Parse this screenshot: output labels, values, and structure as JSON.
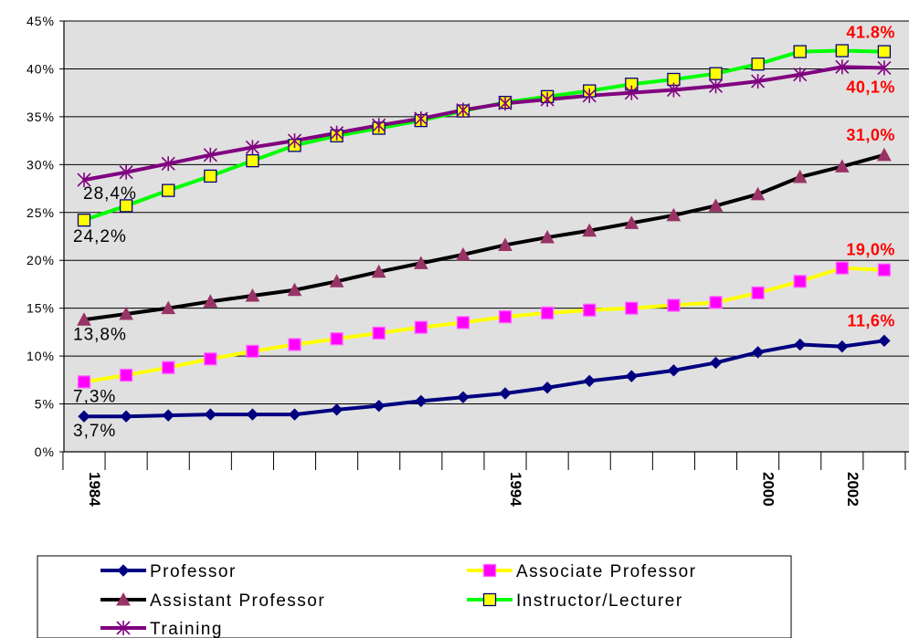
{
  "chart_data": {
    "type": "line",
    "x": [
      1984,
      1985,
      1986,
      1987,
      1988,
      1989,
      1990,
      1991,
      1992,
      1993,
      1994,
      1995,
      1996,
      1997,
      1998,
      1999,
      2000,
      2001,
      2002,
      2003
    ],
    "x_tick_labels": [
      "1984",
      "1994",
      "2000",
      "2002"
    ],
    "x_tick_label_positions": [
      1984,
      1994,
      2000,
      2002
    ],
    "y_tick_labels": [
      "0%",
      "5%",
      "10%",
      "15%",
      "20%",
      "25%",
      "30%",
      "35%",
      "40%",
      "45%"
    ],
    "ylim": [
      0,
      45
    ],
    "y_step": 5,
    "grid": "horizontal",
    "legend_position": "bottom",
    "series": [
      {
        "name": "Professor",
        "line_color": "#000080",
        "marker": "diamond",
        "marker_fill": "#000080",
        "marker_stroke": "#000080",
        "values": [
          3.7,
          3.7,
          3.8,
          3.9,
          3.9,
          3.9,
          4.4,
          4.8,
          5.3,
          5.7,
          6.1,
          6.7,
          7.4,
          7.9,
          8.5,
          9.3,
          10.4,
          11.2,
          11.0,
          11.6
        ],
        "start_label": "3,7%",
        "end_label": "11,6%"
      },
      {
        "name": "Associate Professor",
        "line_color": "#ffff00",
        "marker": "square",
        "marker_fill": "#ff00ff",
        "marker_stroke": "#ff66ff",
        "values": [
          7.3,
          8.0,
          8.8,
          9.7,
          10.5,
          11.2,
          11.8,
          12.4,
          13.0,
          13.5,
          14.1,
          14.5,
          14.8,
          15.0,
          15.3,
          15.6,
          16.6,
          17.8,
          19.2,
          19.0
        ],
        "start_label": "7,3%",
        "end_label": "19,0%"
      },
      {
        "name": "Assistant Professor",
        "line_color": "#000000",
        "marker": "triangle",
        "marker_fill": "#993366",
        "marker_stroke": "#993366",
        "values": [
          13.8,
          14.4,
          15.0,
          15.7,
          16.3,
          16.9,
          17.8,
          18.8,
          19.7,
          20.6,
          21.6,
          22.4,
          23.1,
          23.9,
          24.7,
          25.7,
          26.9,
          28.7,
          29.8,
          31.0
        ],
        "start_label": "13,8%",
        "end_label": "31,0%"
      },
      {
        "name": "Instructor/Lecturer",
        "line_color": "#00ff00",
        "marker": "square",
        "marker_fill": "#ffff00",
        "marker_stroke": "#000080",
        "values": [
          24.2,
          25.7,
          27.3,
          28.8,
          30.4,
          32.0,
          33.0,
          33.8,
          34.6,
          35.6,
          36.5,
          37.1,
          37.7,
          38.4,
          38.9,
          39.5,
          40.5,
          41.8,
          41.9,
          41.8
        ],
        "start_label": "24,2%",
        "end_label": "41.8%"
      },
      {
        "name": "Training",
        "line_color": "#800080",
        "marker": "star",
        "marker_fill": "none",
        "marker_stroke": "#800080",
        "values": [
          28.4,
          29.2,
          30.1,
          31.0,
          31.8,
          32.5,
          33.3,
          34.1,
          34.8,
          35.7,
          36.4,
          36.8,
          37.2,
          37.5,
          37.8,
          38.2,
          38.7,
          39.4,
          40.2,
          40.1
        ],
        "start_label": "28,4%",
        "end_label": "40,1%"
      }
    ],
    "colors": {
      "plot_background": "#e0e0e0",
      "gridline": "#000000",
      "end_label": "#ff0000"
    }
  }
}
